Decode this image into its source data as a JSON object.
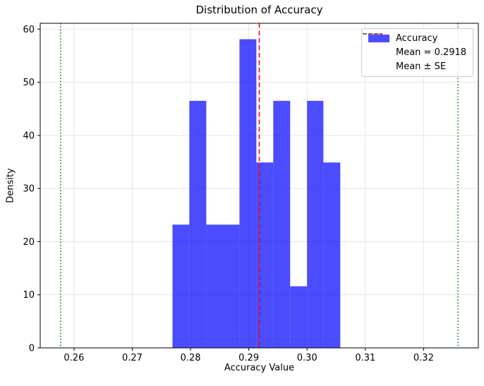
{
  "chart_data": {
    "type": "bar",
    "subtype": "histogram",
    "title": "Distribution of Accuracy",
    "xlabel": "Accuracy Value",
    "ylabel": "Density",
    "xlim": [
      0.2542,
      0.3294
    ],
    "ylim": [
      0,
      61.1
    ],
    "grid": true,
    "grid_color": "#b0b0b0",
    "bar_color": "#0000ff",
    "bar_alpha": 0.7,
    "xticks": {
      "values": [
        0.26,
        0.27,
        0.28,
        0.29,
        0.3,
        0.31,
        0.32
      ],
      "labels": [
        "0.26",
        "0.27",
        "0.28",
        "0.29",
        "0.30",
        "0.31",
        "0.32"
      ]
    },
    "yticks": {
      "values": [
        0,
        10,
        20,
        30,
        40,
        50,
        60
      ],
      "labels": [
        "0",
        "10",
        "20",
        "30",
        "40",
        "50",
        "60"
      ]
    },
    "bins": {
      "edges": [
        0.2769,
        0.2798,
        0.2827,
        0.2855,
        0.2884,
        0.2913,
        0.2942,
        0.2971,
        0.3,
        0.3028,
        0.3057
      ],
      "densities": [
        23.2,
        46.5,
        23.2,
        23.2,
        58.1,
        34.9,
        46.5,
        11.6,
        46.5,
        34.9
      ]
    },
    "lines": [
      {
        "name": "mean",
        "value": 0.2918,
        "color": "#ff0000",
        "style": "dashed",
        "label": "Mean = 0.2918"
      },
      {
        "name": "mean-minus-se",
        "value": 0.2577,
        "color": "#008000",
        "style": "dotted",
        "label": "Mean ± SE"
      },
      {
        "name": "mean-plus-se",
        "value": 0.3259,
        "color": "#008000",
        "style": "dotted",
        "label": "Mean ± SE"
      }
    ],
    "legend_position": "upper right",
    "legend": [
      {
        "swatch": "patch",
        "color": "#0000ff",
        "alpha": 0.7,
        "label": "Accuracy"
      },
      {
        "swatch": "dashed-line",
        "color": "#ff0000",
        "label": "Mean = 0.2918"
      },
      {
        "swatch": "dotted-line",
        "color": "#008000",
        "label": "Mean ± SE"
      }
    ]
  }
}
